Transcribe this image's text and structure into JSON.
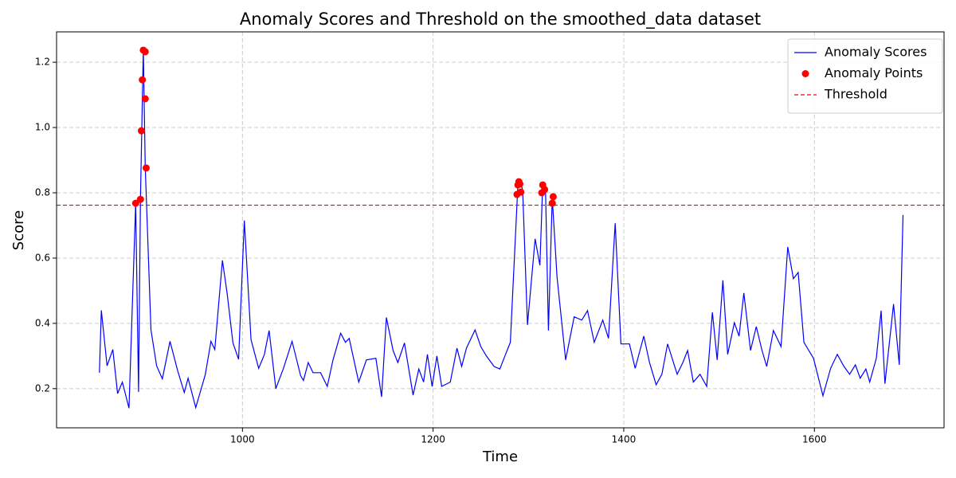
{
  "chart_data": {
    "type": "line",
    "title": "Anomaly Scores and Threshold on the smoothed_data dataset",
    "xlabel": "Time",
    "ylabel": "Score",
    "xlim": [
      805,
      1736
    ],
    "ylim": [
      0.08,
      1.293
    ],
    "xticks": [
      1000,
      1200,
      1400,
      1600
    ],
    "yticks": [
      0.2,
      0.4,
      0.6,
      0.8,
      {
        "value": 1,
        "label": "1.0"
      },
      1.2
    ],
    "grid": true,
    "legend": "upper right",
    "series": [
      {
        "name": "Anomaly Scores",
        "color": "#0000ff",
        "x": [
          850,
          852,
          858,
          864,
          869,
          874,
          881,
          888,
          891,
          893,
          896,
          898,
          904,
          910,
          916,
          924,
          932,
          939,
          943,
          951,
          961,
          967,
          971,
          979,
          984,
          990,
          996,
          1002,
          1009,
          1017,
          1023,
          1028,
          1035,
          1043,
          1052,
          1061,
          1064,
          1069,
          1074,
          1082,
          1089,
          1095,
          1103,
          1108,
          1112,
          1122,
          1130,
          1140,
          1146,
          1151,
          1158,
          1163,
          1170,
          1179,
          1185,
          1190,
          1194,
          1199,
          1204,
          1209,
          1218,
          1225,
          1230,
          1235,
          1244,
          1250,
          1256,
          1264,
          1270,
          1276,
          1281,
          1289,
          1292,
          1294,
          1299,
          1307,
          1312,
          1315,
          1318,
          1321,
          1325,
          1330,
          1339,
          1348,
          1356,
          1362,
          1369,
          1378,
          1384,
          1391,
          1397,
          1406,
          1412,
          1421,
          1427,
          1434,
          1440,
          1446,
          1456,
          1462,
          1467,
          1473,
          1480,
          1487,
          1493,
          1498,
          1504,
          1509,
          1516,
          1521,
          1526,
          1533,
          1539,
          1545,
          1550,
          1557,
          1565,
          1572,
          1578,
          1583,
          1589,
          1599,
          1609,
          1617,
          1624,
          1631,
          1637,
          1643,
          1648,
          1654,
          1658,
          1665,
          1670,
          1674,
          1683,
          1689,
          1693
        ],
        "values": [
          0.249,
          0.44,
          0.27,
          0.32,
          0.185,
          0.22,
          0.14,
          0.768,
          0.19,
          0.78,
          1.24,
          0.88,
          0.38,
          0.27,
          0.23,
          0.345,
          0.255,
          0.188,
          0.232,
          0.142,
          0.243,
          0.345,
          0.32,
          0.593,
          0.49,
          0.34,
          0.29,
          0.715,
          0.35,
          0.262,
          0.305,
          0.378,
          0.2,
          0.262,
          0.345,
          0.24,
          0.225,
          0.28,
          0.249,
          0.249,
          0.207,
          0.288,
          0.37,
          0.342,
          0.354,
          0.22,
          0.288,
          0.293,
          0.175,
          0.418,
          0.317,
          0.28,
          0.34,
          0.18,
          0.26,
          0.22,
          0.305,
          0.207,
          0.3,
          0.207,
          0.22,
          0.324,
          0.268,
          0.324,
          0.38,
          0.329,
          0.3,
          0.268,
          0.26,
          0.305,
          0.342,
          0.825,
          0.835,
          0.805,
          0.395,
          0.659,
          0.578,
          0.825,
          0.805,
          0.378,
          0.785,
          0.542,
          0.288,
          0.42,
          0.41,
          0.439,
          0.342,
          0.41,
          0.354,
          0.707,
          0.337,
          0.337,
          0.262,
          0.361,
          0.28,
          0.212,
          0.244,
          0.337,
          0.244,
          0.28,
          0.317,
          0.22,
          0.244,
          0.207,
          0.434,
          0.288,
          0.532,
          0.305,
          0.402,
          0.361,
          0.493,
          0.317,
          0.39,
          0.317,
          0.268,
          0.378,
          0.329,
          0.634,
          0.537,
          0.556,
          0.342,
          0.293,
          0.178,
          0.262,
          0.305,
          0.268,
          0.244,
          0.273,
          0.232,
          0.26,
          0.22,
          0.293,
          0.439,
          0.215,
          0.459,
          0.273,
          0.732
        ]
      }
    ],
    "scatter": {
      "name": "Anomaly Points",
      "color": "#ff0000",
      "x": [
        888,
        893,
        894,
        895,
        896,
        898,
        898,
        899,
        1288,
        1289,
        1290,
        1291,
        1292,
        1314,
        1315,
        1317,
        1325,
        1326
      ],
      "values": [
        0.768,
        0.78,
        0.99,
        1.146,
        1.237,
        1.232,
        1.088,
        0.876,
        0.795,
        0.824,
        0.834,
        0.827,
        0.802,
        0.8,
        0.824,
        0.81,
        0.768,
        0.788
      ]
    },
    "threshold": {
      "name": "Threshold",
      "color": "#ff0000",
      "value": 0.762
    }
  }
}
